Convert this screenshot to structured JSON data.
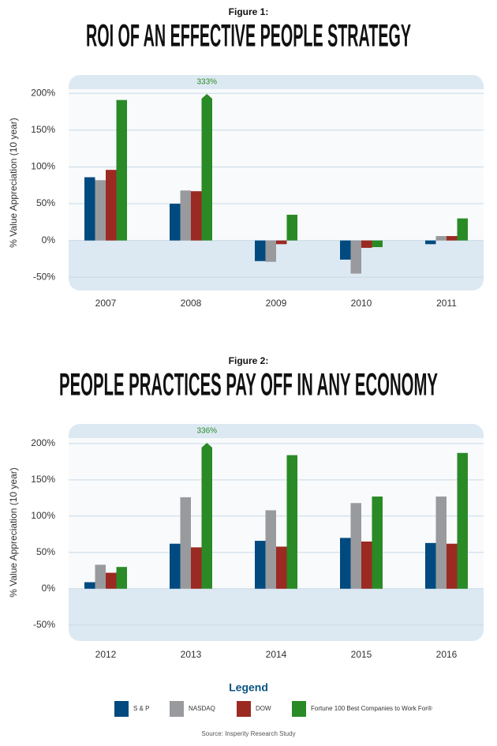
{
  "chart_data": [
    {
      "type": "bar",
      "subtitle": "Figure 1:",
      "title": "ROI OF AN EFFECTIVE PEOPLE STRATEGY",
      "y_label": "% Value Appreciation (10 year)",
      "categories": [
        "2007",
        "2008",
        "2009",
        "2010",
        "2011"
      ],
      "series": [
        {
          "name": "S & P",
          "color": "#004a80",
          "values": [
            86,
            50,
            -28,
            -26,
            -5
          ]
        },
        {
          "name": "NASDAQ",
          "color": "#999a9e",
          "values": [
            82,
            68,
            -29,
            -45,
            6
          ]
        },
        {
          "name": "DOW",
          "color": "#9b2a22",
          "values": [
            96,
            67,
            -5,
            -10,
            6
          ]
        },
        {
          "name": "Fortune 100 Best Companies to Work For®",
          "color": "#2a8a26",
          "values": [
            191,
            333,
            35,
            -9,
            30
          ],
          "value_labels": [
            null,
            "333%",
            null,
            null,
            null
          ]
        }
      ],
      "ylim": [
        -68,
        225
      ],
      "yticks": [
        {
          "value": -50,
          "label": "-50%"
        },
        {
          "value": 0,
          "label": "0%"
        },
        {
          "value": 50,
          "label": "50%"
        },
        {
          "value": 100,
          "label": "100%"
        },
        {
          "value": 150,
          "label": "150%"
        },
        {
          "value": 200,
          "label": "200%"
        }
      ],
      "grid": true
    },
    {
      "type": "bar",
      "subtitle": "Figure 2:",
      "title": "PEOPLE PRACTICES PAY OFF IN ANY ECONOMY",
      "y_label": "% Value Appreciation (10 year)",
      "categories": [
        "2012",
        "2013",
        "2014",
        "2015",
        "2016"
      ],
      "series": [
        {
          "values": [
            9,
            62,
            66,
            70,
            63
          ]
        },
        {
          "values": [
            33,
            126,
            108,
            118,
            127
          ]
        },
        {
          "values": [
            22,
            57,
            58,
            65,
            62
          ]
        },
        {
          "values": [
            30,
            336,
            184,
            127,
            187
          ],
          "value_labels": [
            null,
            "336%",
            null,
            null,
            null
          ]
        }
      ],
      "ylim": [
        -72,
        227
      ],
      "yticks": [
        {
          "value": -50,
          "label": "-50%"
        },
        {
          "value": 0,
          "label": "0%"
        },
        {
          "value": 50,
          "label": "50%"
        },
        {
          "value": 100,
          "label": "100%"
        },
        {
          "value": 150,
          "label": "150%"
        },
        {
          "value": 200,
          "label": "200%"
        }
      ],
      "grid": true
    }
  ],
  "legend": {
    "title": "Legend"
  },
  "source": "Source: Insperity Research Study"
}
